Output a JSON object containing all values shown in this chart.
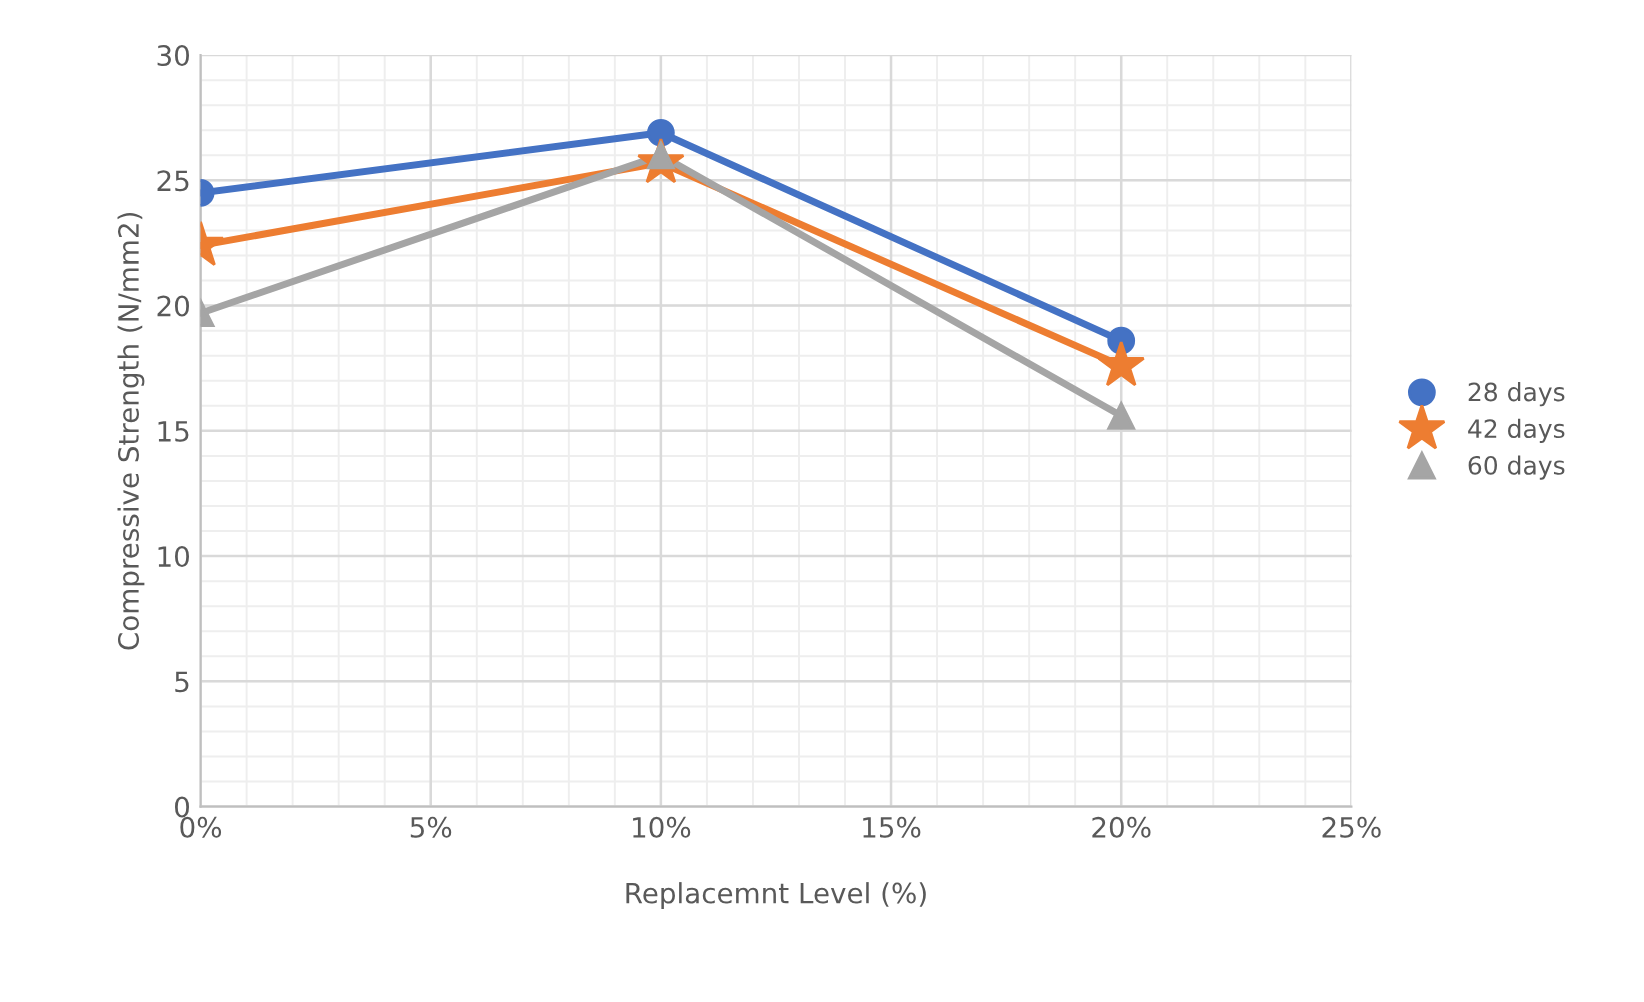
{
  "chart_data": {
    "type": "line",
    "xlabel": "Replacemnt Level (%)",
    "ylabel": "Compressive Strength (N/mm2)",
    "x": [
      0,
      10,
      20
    ],
    "series": [
      {
        "name": "28 days",
        "color": "#4472c4",
        "marker": "circle",
        "values": [
          24.5,
          26.9,
          18.6
        ]
      },
      {
        "name": "42 days",
        "color": "#ed7d31",
        "marker": "star",
        "values": [
          22.4,
          25.7,
          17.6
        ]
      },
      {
        "name": "60 days",
        "color": "#a5a5a5",
        "marker": "triangle",
        "values": [
          19.7,
          26.0,
          15.6
        ]
      }
    ],
    "xlim": [
      0,
      25
    ],
    "xticks": [
      {
        "value": 0,
        "label": "0%"
      },
      {
        "value": 5,
        "label": "5%"
      },
      {
        "value": 10,
        "label": "10%"
      },
      {
        "value": 15,
        "label": "15%"
      },
      {
        "value": 20,
        "label": "20%"
      },
      {
        "value": 25,
        "label": "25%"
      }
    ],
    "ylim": [
      0,
      30
    ],
    "yticks": [
      0,
      5,
      10,
      15,
      20,
      25,
      30
    ],
    "grid": true,
    "legend": "right",
    "line_style": "solid"
  }
}
